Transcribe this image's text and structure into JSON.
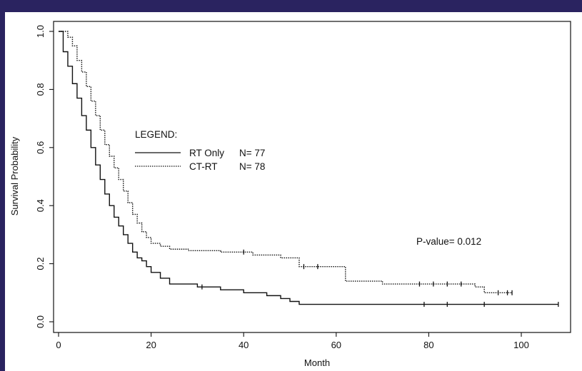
{
  "chart_data": {
    "type": "line",
    "subtype": "kaplan-meier step",
    "title": "",
    "xlabel": "Month",
    "ylabel": "Survival Probability",
    "xlim": [
      0,
      110
    ],
    "ylim": [
      0,
      1.0
    ],
    "xticks": [
      "0",
      "20",
      "40",
      "60",
      "80",
      "100"
    ],
    "yticks": [
      "0.0",
      "0.2",
      "0.4",
      "0.6",
      "0.8",
      "1.0"
    ],
    "grid": false,
    "legend": {
      "title": "LEGEND:",
      "placement": "upper-left",
      "entries": [
        {
          "label": "RT Only",
          "n": "N= 77",
          "style": "solid"
        },
        {
          "label": "CT-RT",
          "n": "N= 78",
          "style": "dotted"
        }
      ]
    },
    "annotation": "P-value= 0.012",
    "series": [
      {
        "name": "RT Only",
        "style": "solid",
        "x": [
          0,
          1,
          2,
          3,
          4,
          5,
          6,
          7,
          8,
          9,
          10,
          11,
          12,
          13,
          14,
          15,
          16,
          17,
          18,
          19,
          20,
          22,
          24,
          30,
          35,
          40,
          45,
          48,
          50,
          52,
          60,
          80,
          100,
          108
        ],
        "y": [
          1.0,
          0.93,
          0.88,
          0.82,
          0.77,
          0.71,
          0.66,
          0.6,
          0.54,
          0.49,
          0.44,
          0.4,
          0.36,
          0.33,
          0.3,
          0.27,
          0.24,
          0.22,
          0.21,
          0.19,
          0.17,
          0.15,
          0.13,
          0.12,
          0.11,
          0.1,
          0.09,
          0.08,
          0.07,
          0.06,
          0.06,
          0.06,
          0.06,
          0.06
        ],
        "censored_x": [
          31,
          79,
          84,
          92,
          108
        ]
      },
      {
        "name": "CT-RT",
        "style": "dotted",
        "x": [
          0,
          2,
          3,
          4,
          5,
          6,
          7,
          8,
          9,
          10,
          11,
          12,
          13,
          14,
          15,
          16,
          17,
          18,
          19,
          20,
          22,
          24,
          28,
          35,
          42,
          48,
          52,
          56,
          62,
          70,
          80,
          90,
          92,
          98
        ],
        "y": [
          1.0,
          0.98,
          0.95,
          0.9,
          0.86,
          0.81,
          0.76,
          0.71,
          0.66,
          0.61,
          0.57,
          0.53,
          0.49,
          0.45,
          0.41,
          0.37,
          0.34,
          0.31,
          0.29,
          0.27,
          0.26,
          0.25,
          0.245,
          0.24,
          0.23,
          0.22,
          0.19,
          0.19,
          0.14,
          0.13,
          0.13,
          0.12,
          0.1,
          0.1
        ],
        "censored_x": [
          40,
          53,
          56,
          78,
          81,
          84,
          87,
          95,
          97,
          98
        ]
      }
    ]
  }
}
